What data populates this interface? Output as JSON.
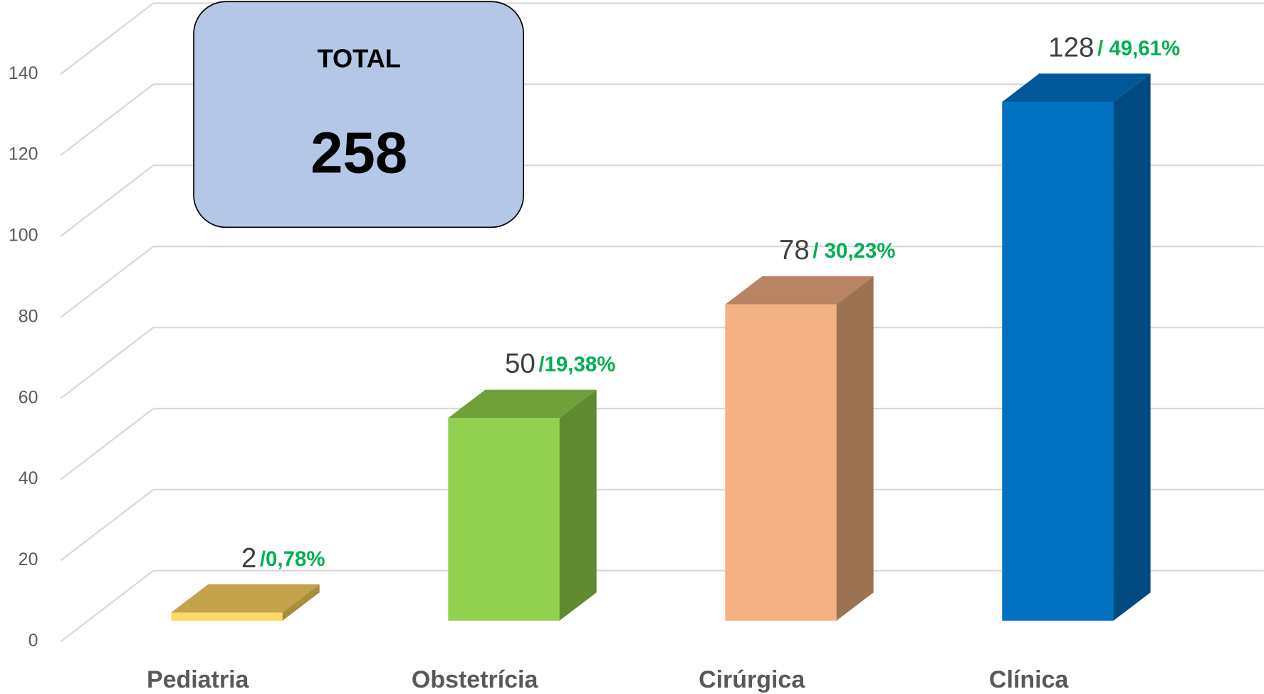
{
  "chart_data": {
    "type": "bar3d",
    "categories": [
      "Pediatria",
      "Obstetrícia",
      "Cirúrgica",
      "Clínica"
    ],
    "values": [
      2,
      50,
      78,
      128
    ],
    "percent_labels": [
      "/0,78%",
      "/19,38%",
      "/ 30,23%",
      "/ 49,61%"
    ],
    "colors": [
      {
        "front": "#ffd966",
        "top": "#c2a24a",
        "side": "#a88d3a"
      },
      {
        "front": "#92d050",
        "top": "#70a03a",
        "side": "#5f8a30"
      },
      {
        "front": "#f4b183",
        "top": "#b98463",
        "side": "#9c7352"
      },
      {
        "front": "#0070c0",
        "top": "#00589a",
        "side": "#004a80"
      }
    ],
    "ylim": [
      0,
      140
    ],
    "yticks": [
      0,
      20,
      40,
      60,
      80,
      100,
      120,
      140
    ],
    "grid": true,
    "total_label": "TOTAL",
    "total": 258
  }
}
